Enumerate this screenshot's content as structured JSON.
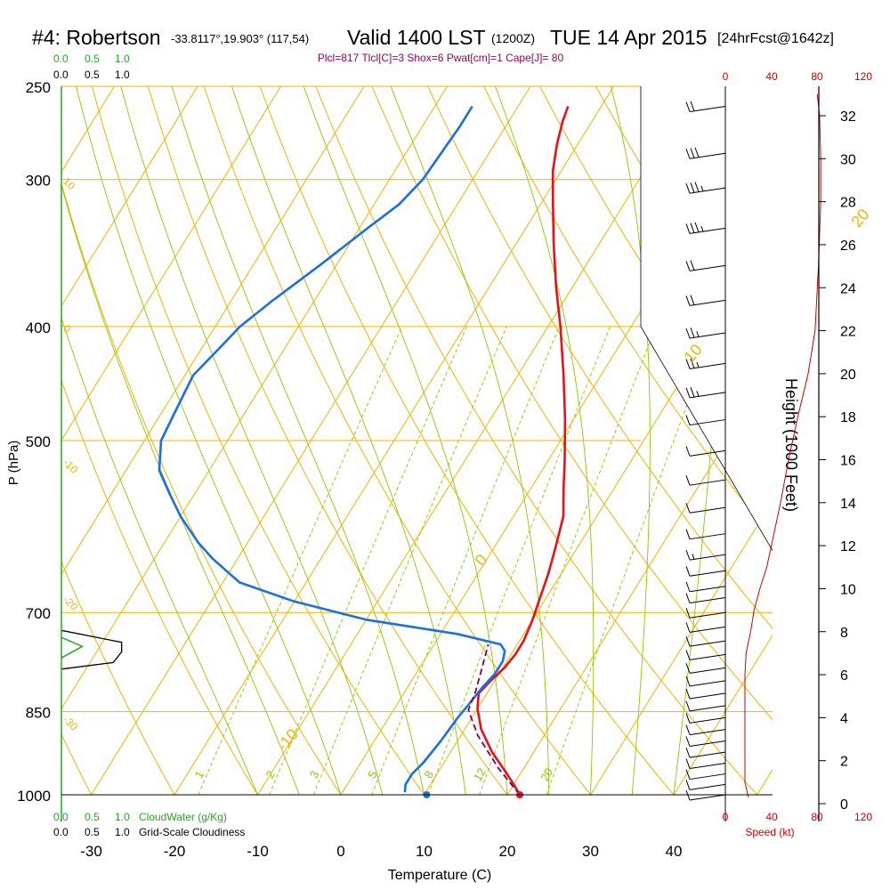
{
  "header": {
    "station": "#4: Robertson",
    "coords": "-33.8117°,19.903° (117,54)",
    "valid": "Valid 1400 LST",
    "utc": "(1200Z)",
    "date": "TUE 14 Apr 2015",
    "fcst": "[24hrFcst@1642z]"
  },
  "indices": "Plcl=817 Tlcl[C]=3 Shox=6 Pwat[cm]=1 Cape[J]= 80",
  "colors": {
    "temperature": "#e8111a",
    "dewpoint": "#1a6fe8",
    "parcel": "#800050",
    "isotherm": "#f0b400",
    "dry_adiabat": "#f0b400",
    "mixing_ratio": "#8cc800",
    "moist_adiabat": "#8cc800",
    "cloudwater": "#22aa22",
    "cloudiness": "#000000",
    "wind_speed": "#cc0000"
  },
  "top_scale": {
    "green": [
      "0.0",
      "0.5",
      "1.0"
    ],
    "black": [
      "0.0",
      "0.5",
      "1.0"
    ]
  },
  "bottom_scale": {
    "green": [
      "0.0",
      "0.5",
      "1.0"
    ],
    "green_label": "CloudWater (g/Kg)",
    "black": [
      "0.0",
      "0.5",
      "1.0"
    ],
    "black_label": "Grid-Scale Cloudiness"
  },
  "speed_scale": {
    "ticks": [
      "0",
      "40",
      "80",
      "120"
    ],
    "label": "Speed (kt)"
  },
  "chart_data": {
    "type": "line",
    "title": "#4: Robertson Valid 1400 LST TUE 14 Apr 2015",
    "xlabel": "Temperature (C)",
    "ylabel": "P (hPa)",
    "y2label": "Height (1000 Feet)",
    "xlim": [
      -35,
      45
    ],
    "ylim": [
      1000,
      250
    ],
    "x_ticks": [
      "-30",
      "-20",
      "-10",
      "0",
      "10",
      "20",
      "30",
      "40"
    ],
    "p_ticks": [
      "250",
      "300",
      "400",
      "500",
      "700",
      "850",
      "1000"
    ],
    "height_ticks": [
      "0",
      "2",
      "4",
      "6",
      "8",
      "10",
      "12",
      "14",
      "16",
      "18",
      "20",
      "22",
      "24",
      "26",
      "28",
      "30",
      "32"
    ],
    "isotherm_labels": [
      "-10",
      "0",
      "10",
      "20",
      "30"
    ],
    "mixing_ratio_labels": [
      "1",
      "2",
      "3",
      "5",
      "8",
      "12",
      "20"
    ],
    "dry_adiabat_labels": [
      "10",
      "0",
      "-10",
      "-20",
      "-30"
    ],
    "series": [
      {
        "name": "Temperature",
        "points": [
          [
            21.5,
            1000
          ],
          [
            20,
            980
          ],
          [
            18,
            955
          ],
          [
            15,
            920
          ],
          [
            12,
            880
          ],
          [
            10,
            845
          ],
          [
            9,
            820
          ],
          [
            9.5,
            800
          ],
          [
            10.2,
            780
          ],
          [
            10.5,
            760
          ],
          [
            10.5,
            740
          ],
          [
            10,
            710
          ],
          [
            9.5,
            690
          ],
          [
            8.5,
            650
          ],
          [
            7.5,
            620
          ],
          [
            6,
            580
          ],
          [
            4,
            550
          ],
          [
            2,
            520
          ],
          [
            -1,
            480
          ],
          [
            -4.5,
            440
          ],
          [
            -8.5,
            400
          ],
          [
            -12,
            370
          ],
          [
            -15.5,
            340
          ],
          [
            -18.5,
            315
          ],
          [
            -21,
            295
          ],
          [
            -22.5,
            280
          ],
          [
            -23.5,
            268
          ],
          [
            -24,
            260
          ]
        ]
      },
      {
        "name": "Dewpoint",
        "points": [
          [
            7.5,
            995
          ],
          [
            7,
            980
          ],
          [
            7,
            960
          ],
          [
            7.5,
            940
          ],
          [
            8,
            900
          ],
          [
            8.3,
            860
          ],
          [
            8.6,
            840
          ],
          [
            9,
            810
          ],
          [
            9.5,
            790
          ],
          [
            9.5,
            770
          ],
          [
            9,
            755
          ],
          [
            8,
            745
          ],
          [
            2,
            730
          ],
          [
            -10,
            710
          ],
          [
            -20,
            685
          ],
          [
            -28,
            660
          ],
          [
            -33,
            630
          ],
          [
            -36,
            610
          ],
          [
            -40,
            580
          ],
          [
            -43,
            555
          ],
          [
            -46,
            530
          ],
          [
            -48,
            500
          ],
          [
            -48.5,
            470
          ],
          [
            -49,
            440
          ],
          [
            -48,
            420
          ],
          [
            -47,
            400
          ],
          [
            -45,
            380
          ],
          [
            -42,
            355
          ],
          [
            -39,
            330
          ],
          [
            -37,
            315
          ],
          [
            -36,
            300
          ],
          [
            -35.5,
            270
          ],
          [
            -35.5,
            260
          ]
        ]
      },
      {
        "name": "Parcel",
        "points": [
          [
            21.5,
            1000
          ],
          [
            17,
            950
          ],
          [
            12,
            890
          ],
          [
            9,
            847
          ],
          [
            8.5,
            817
          ],
          [
            7.5,
            780
          ],
          [
            6.5,
            745
          ]
        ]
      }
    ],
    "surface_dewpoint": [
      10.3,
      1000
    ],
    "cloudwater": [
      [
        0,
        735
      ],
      [
        0.25,
        748
      ],
      [
        0,
        765
      ]
    ],
    "cloudiness": [
      [
        0,
        725
      ],
      [
        0.72,
        742
      ],
      [
        0.72,
        756
      ],
      [
        0.62,
        772
      ],
      [
        0,
        782
      ]
    ],
    "wind_barbs_kt": [
      [
        20,
        260
      ],
      [
        30,
        285
      ],
      [
        25,
        305
      ],
      [
        25,
        330
      ],
      [
        20,
        355
      ],
      [
        20,
        380
      ],
      [
        15,
        405
      ],
      [
        15,
        430
      ],
      [
        15,
        455
      ],
      [
        10,
        480
      ],
      [
        10,
        510
      ],
      [
        10,
        540
      ],
      [
        10,
        570
      ],
      [
        10,
        600
      ],
      [
        5,
        625
      ],
      [
        10,
        645
      ],
      [
        10,
        665
      ],
      [
        10,
        680
      ],
      [
        10,
        700
      ],
      [
        10,
        720
      ],
      [
        10,
        740
      ],
      [
        10,
        760
      ],
      [
        10,
        780
      ],
      [
        10,
        800
      ],
      [
        10,
        820
      ],
      [
        10,
        840
      ],
      [
        10,
        860
      ],
      [
        10,
        880
      ],
      [
        10,
        900
      ],
      [
        10,
        920
      ],
      [
        10,
        940
      ],
      [
        10,
        960
      ],
      [
        10,
        980
      ],
      [
        10,
        1000
      ]
    ],
    "speed_profile_kt": [
      [
        20,
        0.3
      ],
      [
        17,
        1
      ],
      [
        17,
        4
      ],
      [
        17,
        6
      ],
      [
        18,
        7
      ],
      [
        22,
        8
      ],
      [
        25,
        9
      ],
      [
        30,
        10
      ],
      [
        36,
        11
      ],
      [
        40,
        12
      ],
      [
        48,
        14
      ],
      [
        55,
        16
      ],
      [
        63,
        18
      ],
      [
        72,
        20
      ],
      [
        78,
        22
      ],
      [
        81,
        25
      ],
      [
        83,
        28
      ],
      [
        83,
        30
      ],
      [
        82,
        32
      ],
      [
        80,
        33
      ]
    ]
  }
}
